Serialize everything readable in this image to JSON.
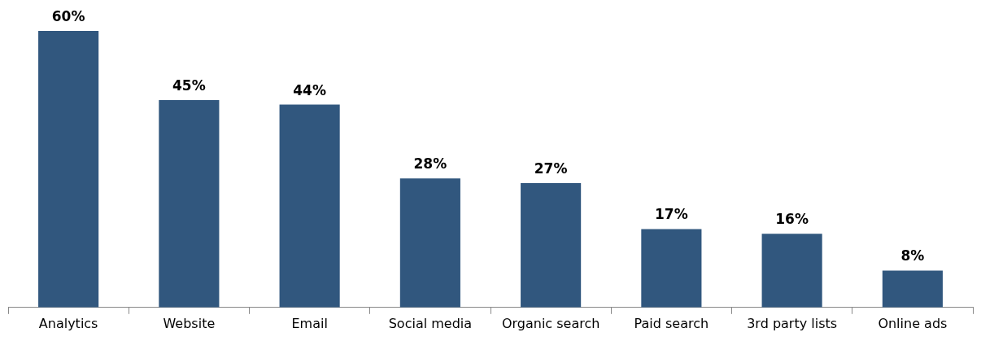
{
  "chart_data": {
    "type": "bar",
    "categories": [
      "Analytics",
      "Website",
      "Email",
      "Social media",
      "Organic search",
      "Paid search",
      "3rd party lists",
      "Online ads"
    ],
    "values": [
      60,
      45,
      44,
      28,
      27,
      17,
      16,
      8
    ],
    "value_labels": [
      "60%",
      "45%",
      "44%",
      "28%",
      "27%",
      "17%",
      "16%",
      "8%"
    ],
    "color": "#31577e",
    "grid": false,
    "legend": false
  }
}
